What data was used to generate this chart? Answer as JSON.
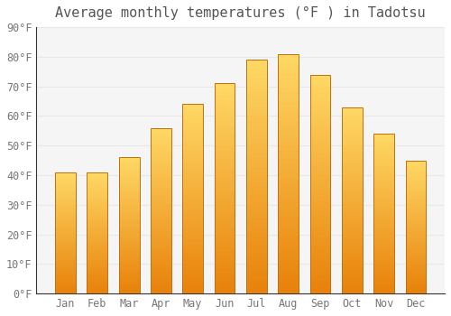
{
  "title": "Average monthly temperatures (°F ) in Tadotsu",
  "months": [
    "Jan",
    "Feb",
    "Mar",
    "Apr",
    "May",
    "Jun",
    "Jul",
    "Aug",
    "Sep",
    "Oct",
    "Nov",
    "Dec"
  ],
  "values": [
    41,
    41,
    46,
    56,
    64,
    71,
    79,
    81,
    74,
    63,
    54,
    45
  ],
  "ylim": [
    0,
    90
  ],
  "yticks": [
    0,
    10,
    20,
    30,
    40,
    50,
    60,
    70,
    80,
    90
  ],
  "background_color": "#ffffff",
  "plot_bg_color": "#f5f5f5",
  "grid_color": "#e8e8e8",
  "title_fontsize": 11,
  "tick_fontsize": 8.5,
  "bar_width": 0.65,
  "bar_color_bottom": "#E8820A",
  "bar_color_top": "#FFD966",
  "bar_edge_color": "#C07010"
}
